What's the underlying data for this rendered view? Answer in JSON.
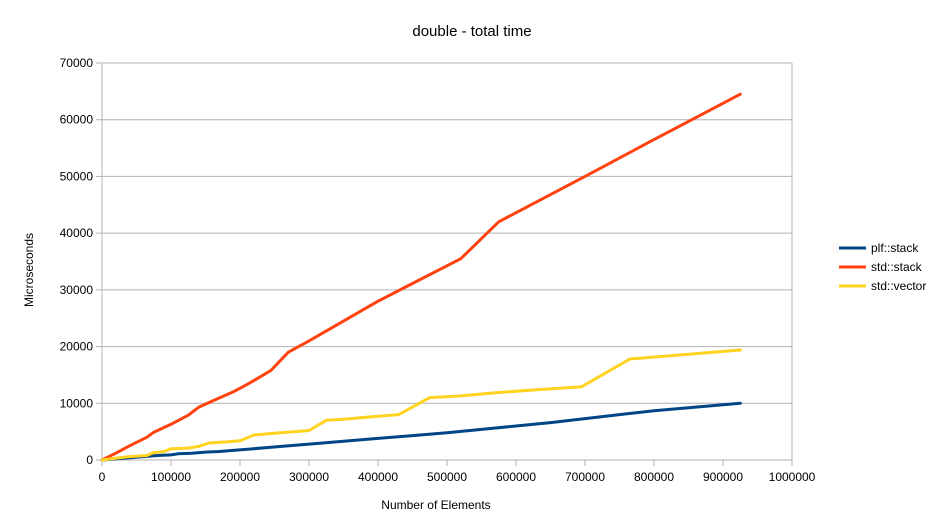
{
  "chart_data": {
    "type": "line",
    "title": "double - total time",
    "xlabel": "Number of Elements",
    "ylabel": "Microseconds",
    "xlim": [
      0,
      1000000
    ],
    "ylim": [
      0,
      70000
    ],
    "xticks": [
      0,
      100000,
      200000,
      300000,
      400000,
      500000,
      600000,
      700000,
      800000,
      900000,
      1000000
    ],
    "yticks": [
      0,
      10000,
      20000,
      30000,
      40000,
      50000,
      60000,
      70000
    ],
    "grid": "horizontal",
    "legend": "right",
    "series": [
      {
        "name": "plf::stack",
        "color": "#004586",
        "points": [
          [
            0,
            0
          ],
          [
            20000,
            200
          ],
          [
            40000,
            400
          ],
          [
            60000,
            600
          ],
          [
            80000,
            800
          ],
          [
            100000,
            900
          ],
          [
            110000,
            1100
          ],
          [
            130000,
            1200
          ],
          [
            150000,
            1400
          ],
          [
            170000,
            1500
          ],
          [
            190000,
            1700
          ],
          [
            220000,
            2000
          ],
          [
            260000,
            2400
          ],
          [
            300000,
            2800
          ],
          [
            350000,
            3300
          ],
          [
            400000,
            3800
          ],
          [
            450000,
            4300
          ],
          [
            500000,
            4800
          ],
          [
            550000,
            5400
          ],
          [
            600000,
            6000
          ],
          [
            650000,
            6600
          ],
          [
            700000,
            7300
          ],
          [
            750000,
            8000
          ],
          [
            800000,
            8700
          ],
          [
            850000,
            9200
          ],
          [
            925000,
            10000
          ]
        ]
      },
      {
        "name": "std::stack",
        "color": "#ff420e",
        "points": [
          [
            0,
            0
          ],
          [
            20000,
            1200
          ],
          [
            40000,
            2500
          ],
          [
            65000,
            4000
          ],
          [
            75000,
            4900
          ],
          [
            100000,
            6300
          ],
          [
            125000,
            7900
          ],
          [
            140000,
            9300
          ],
          [
            160000,
            10400
          ],
          [
            190000,
            12000
          ],
          [
            210000,
            13300
          ],
          [
            230000,
            14700
          ],
          [
            245000,
            15800
          ],
          [
            270000,
            19000
          ],
          [
            300000,
            21000
          ],
          [
            350000,
            24500
          ],
          [
            400000,
            28000
          ],
          [
            440000,
            30500
          ],
          [
            520000,
            35500
          ],
          [
            575000,
            42000
          ],
          [
            700000,
            50000
          ],
          [
            800000,
            56500
          ],
          [
            925000,
            64500
          ]
        ]
      },
      {
        "name": "std::vector",
        "color": "#ffd320",
        "points": [
          [
            0,
            0
          ],
          [
            40000,
            600
          ],
          [
            65000,
            800
          ],
          [
            75000,
            1300
          ],
          [
            90000,
            1500
          ],
          [
            100000,
            2000
          ],
          [
            125000,
            2100
          ],
          [
            140000,
            2400
          ],
          [
            155000,
            3000
          ],
          [
            180000,
            3200
          ],
          [
            200000,
            3400
          ],
          [
            220000,
            4400
          ],
          [
            250000,
            4700
          ],
          [
            300000,
            5200
          ],
          [
            325000,
            7000
          ],
          [
            350000,
            7200
          ],
          [
            400000,
            7700
          ],
          [
            430000,
            8000
          ],
          [
            475000,
            11000
          ],
          [
            520000,
            11300
          ],
          [
            575000,
            11900
          ],
          [
            620000,
            12300
          ],
          [
            695000,
            12900
          ],
          [
            765000,
            17800
          ],
          [
            925000,
            19400
          ]
        ]
      }
    ]
  }
}
